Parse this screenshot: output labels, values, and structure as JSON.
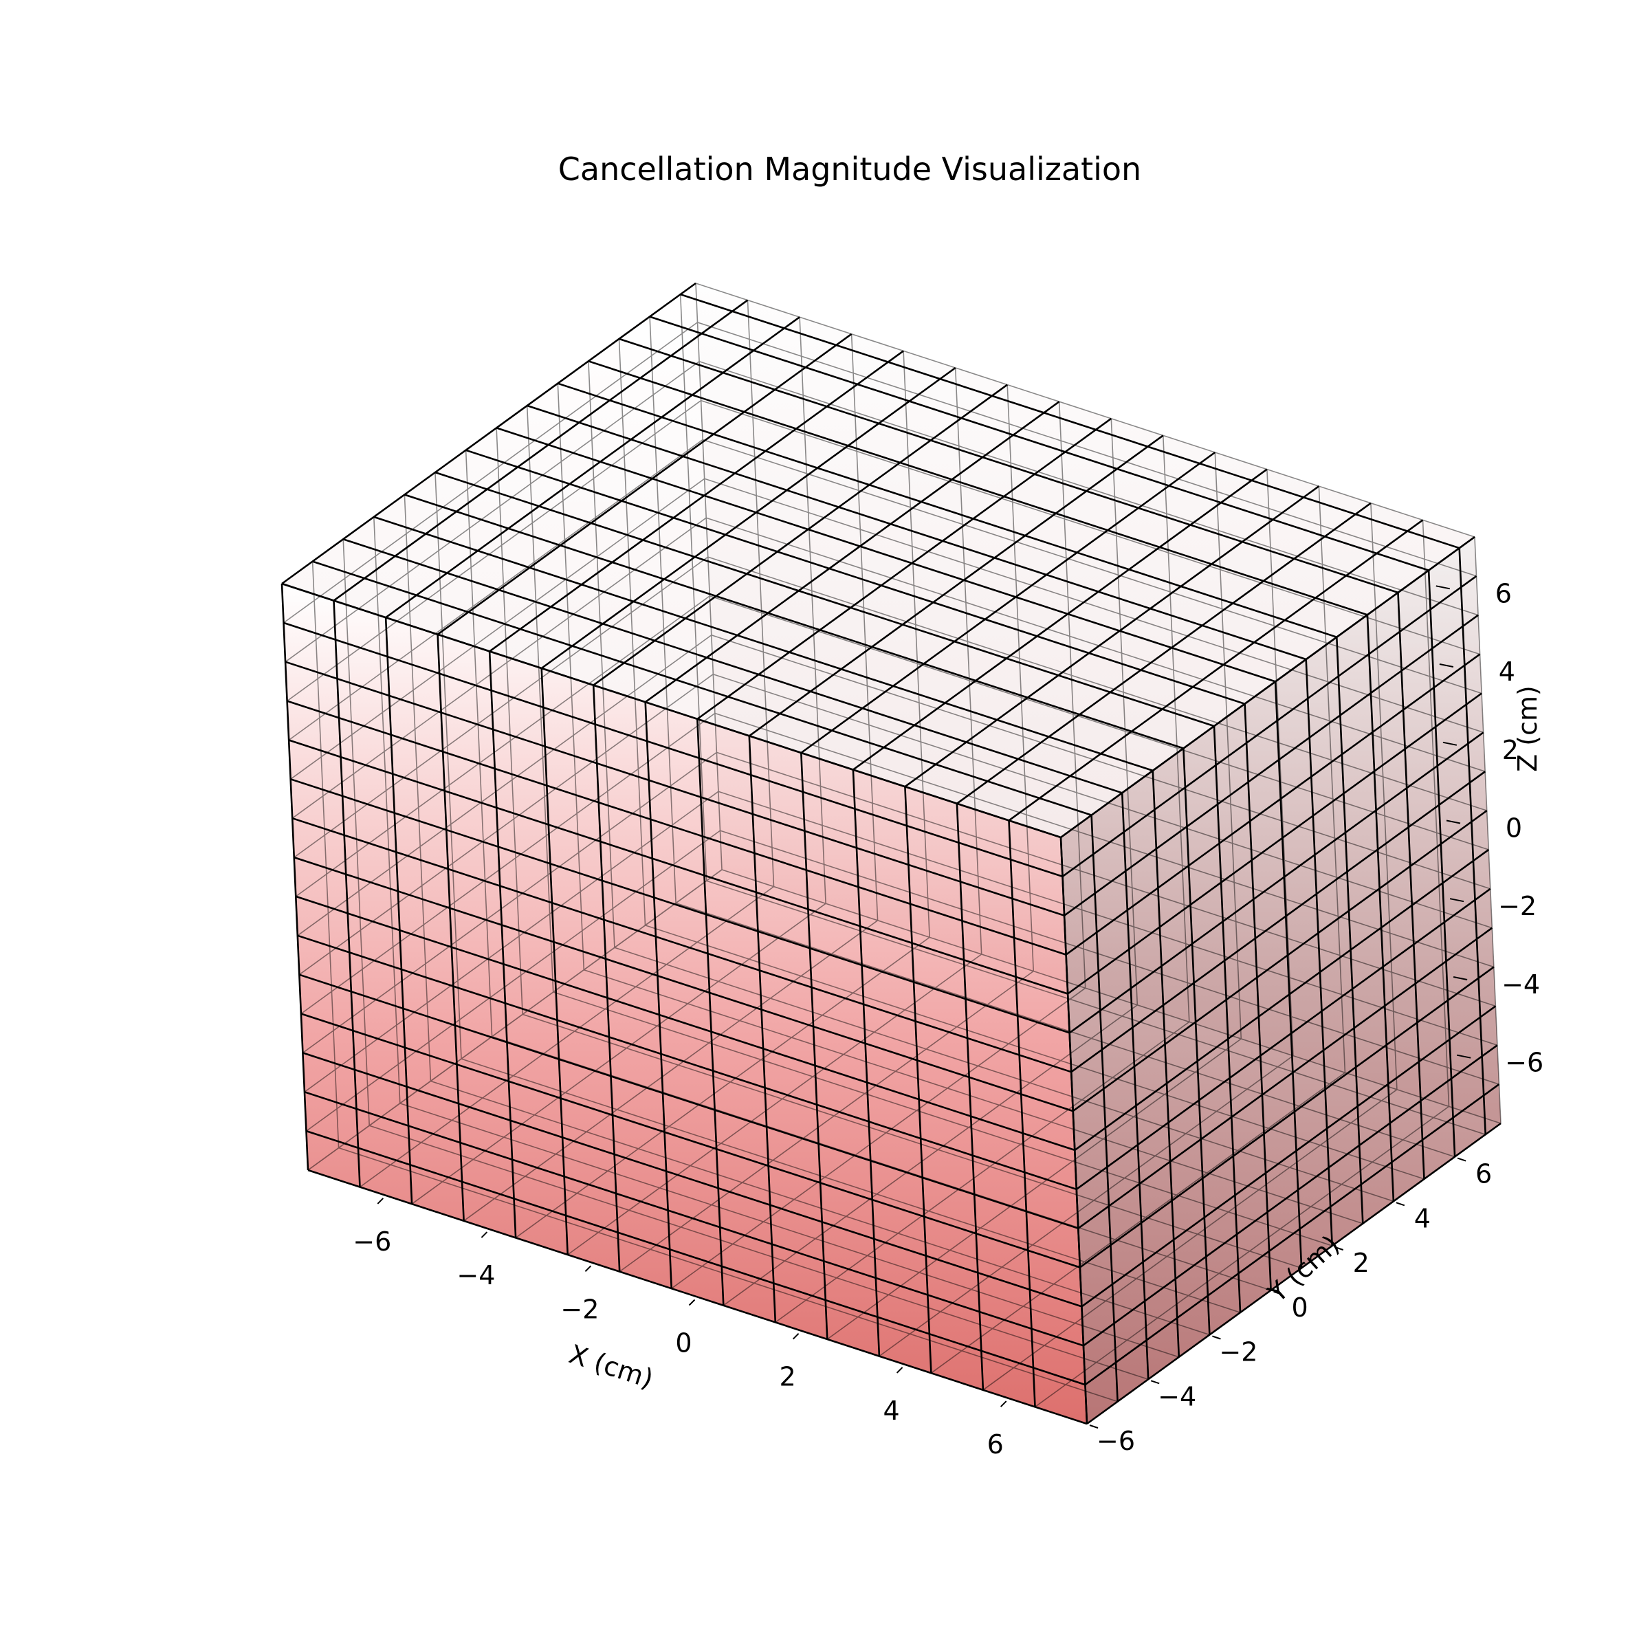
{
  "chart_data": {
    "type": "3d-voxel",
    "title": "Cancellation Magnitude Visualization",
    "xlabel": "X (cm)",
    "ylabel": "Y (cm)",
    "zlabel": "Z (cm)",
    "xlim": [
      -7.5,
      7.5
    ],
    "ylim": [
      -6,
      7.5
    ],
    "zlim": [
      -7.5,
      7.5
    ],
    "x_ticks": [
      -6,
      -4,
      -2,
      0,
      2,
      4,
      6
    ],
    "y_ticks": [
      -6,
      -4,
      -2,
      0,
      2,
      4,
      6
    ],
    "z_ticks": [
      -6,
      -4,
      -2,
      0,
      2,
      4,
      6
    ],
    "x_tick_labels": [
      "−6",
      "−4",
      "−2",
      "0",
      "2",
      "4",
      "6"
    ],
    "y_tick_labels": [
      "−6",
      "−4",
      "−2",
      "0",
      "2",
      "4",
      "6"
    ],
    "z_tick_labels": [
      "−6",
      "−4",
      "−2",
      "0",
      "2",
      "4",
      "6"
    ],
    "voxel_grid": {
      "x_range": [
        -7.5,
        7.5
      ],
      "y_range": [
        -6,
        7.5
      ],
      "z_range": [
        -7.5,
        7.5
      ],
      "cell_size": 1
    },
    "colormap": {
      "low_color": "#ffffff",
      "high_color": "#e05050"
    },
    "edge_color": "#000000",
    "grid": true
  }
}
